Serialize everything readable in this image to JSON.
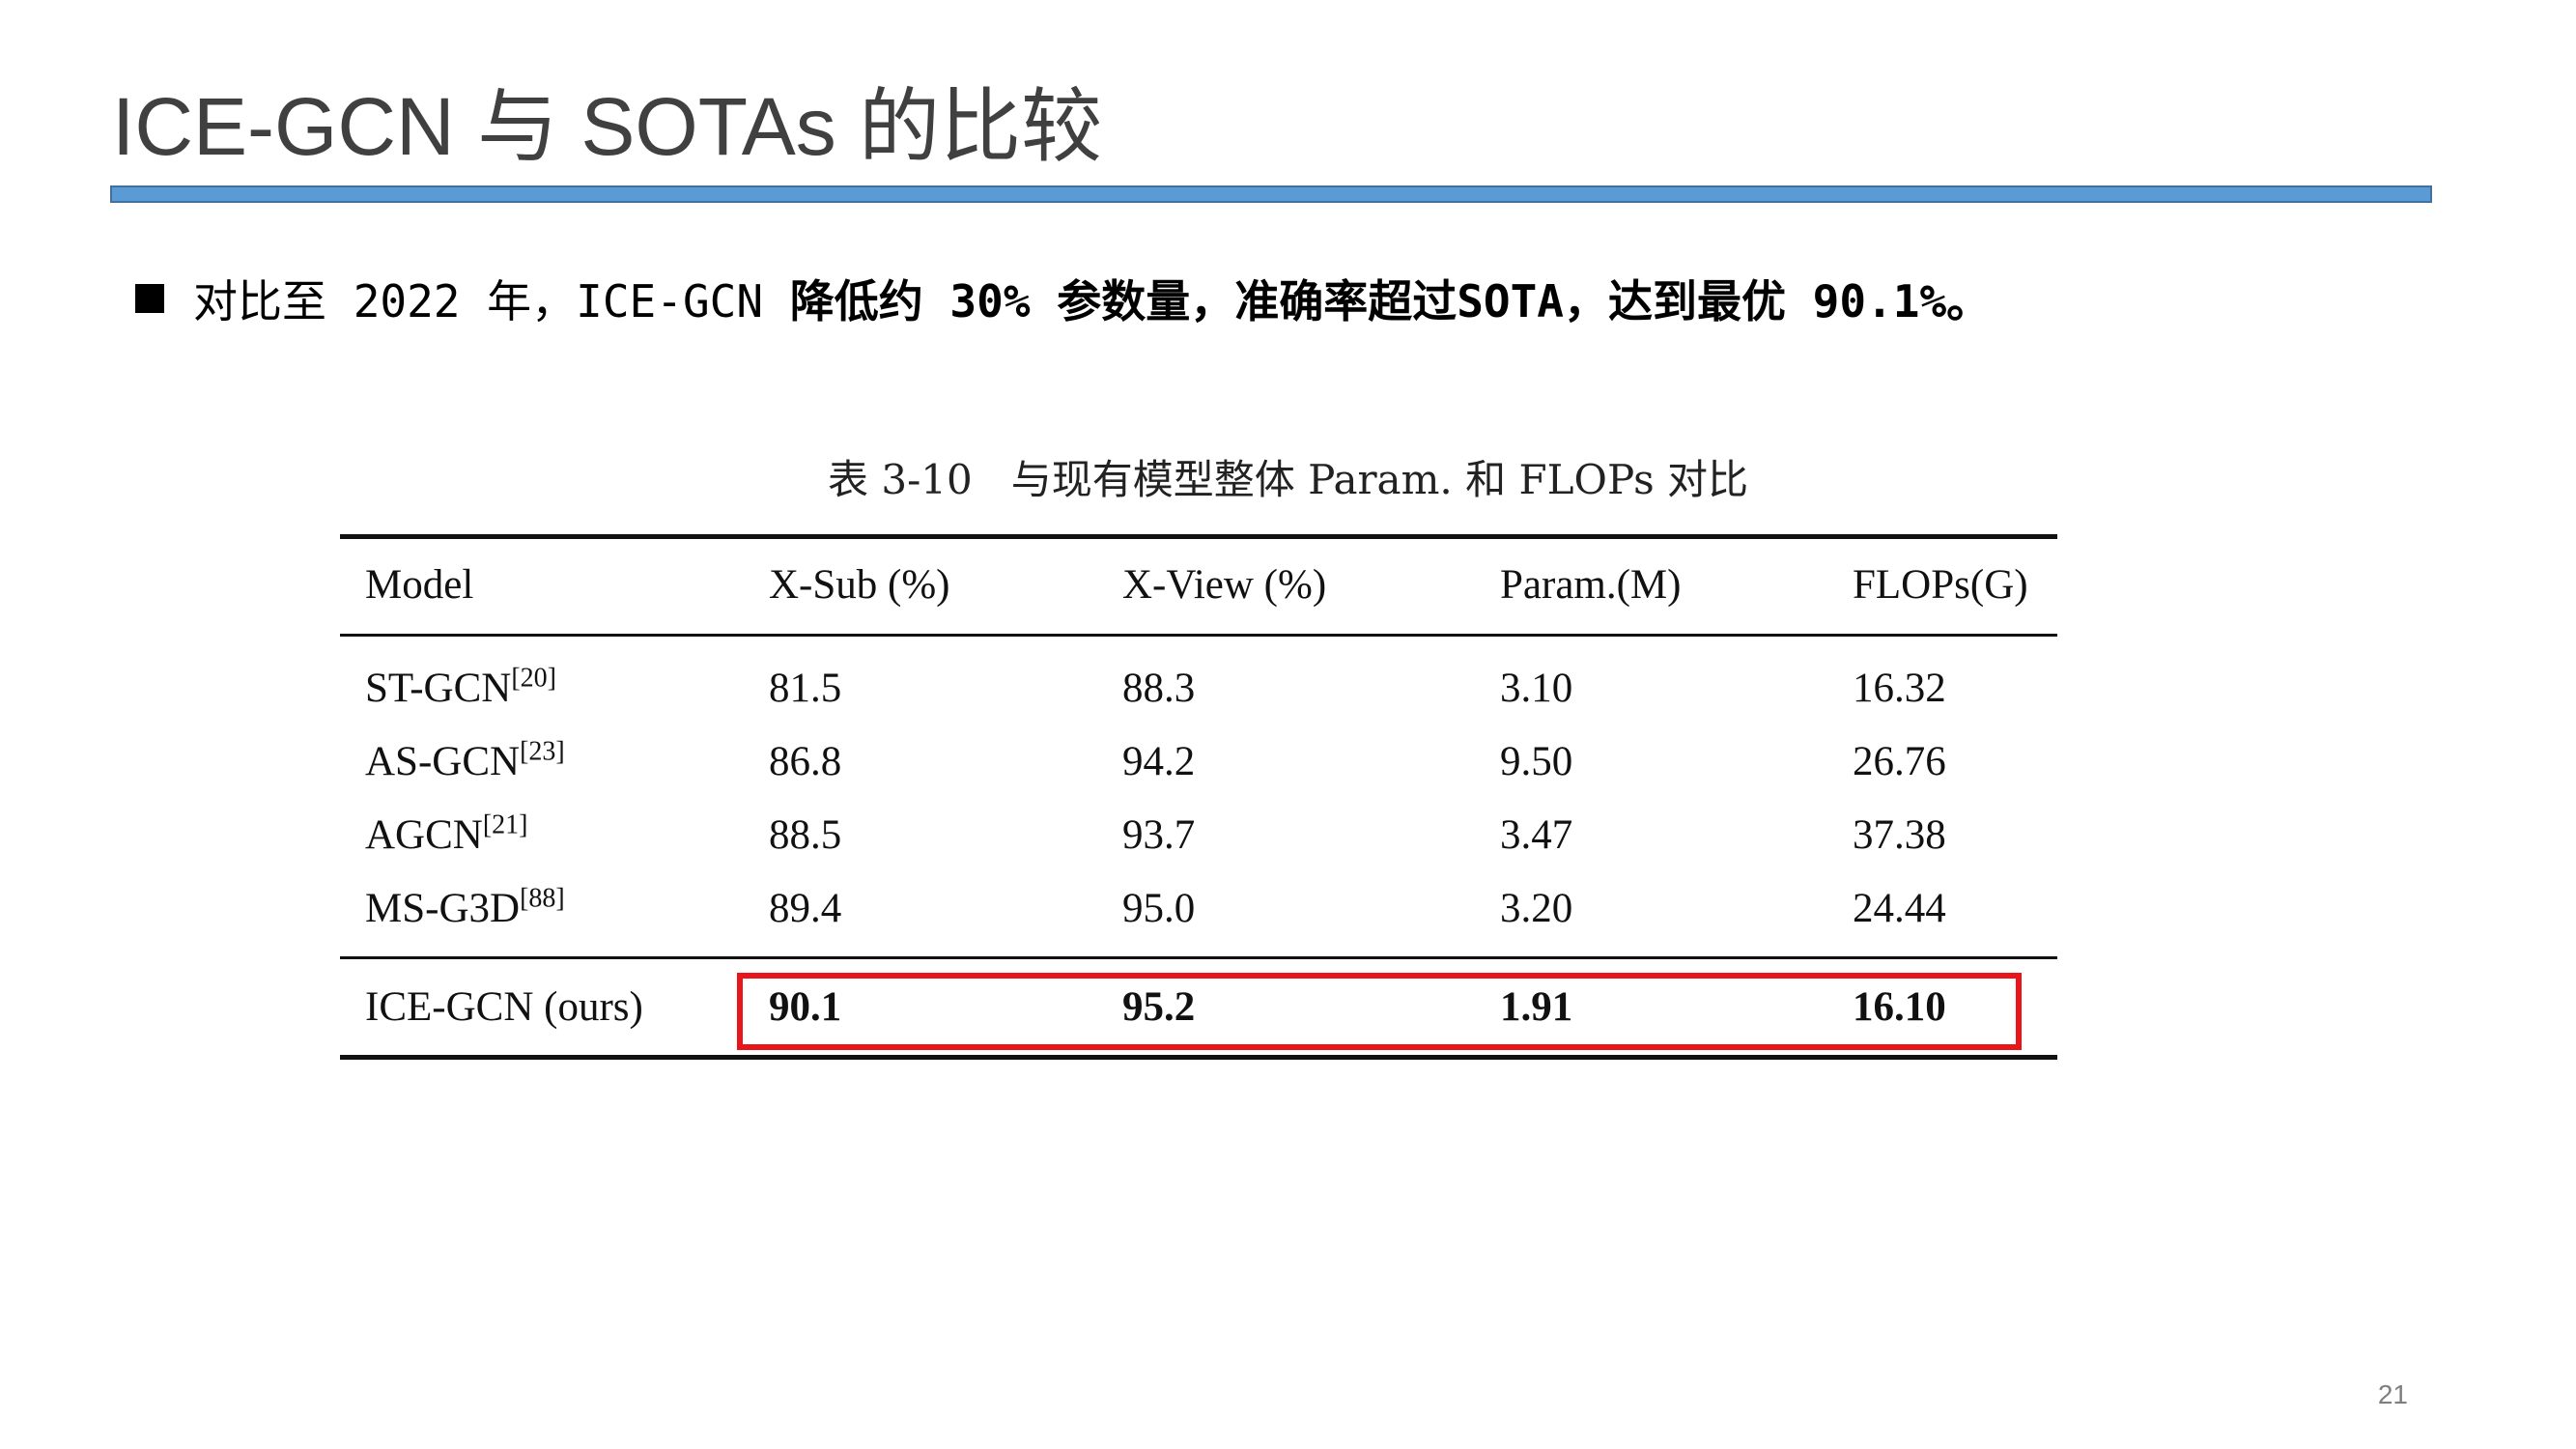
{
  "slide": {
    "title": "ICE-GCN 与 SOTAs 的比较",
    "page_number": "21"
  },
  "bullet": {
    "part1": "对比至 2022 年，ICE-GCN ",
    "part2": "降低约 30% 参数量，准确率超过SOTA，达到最优 90.1%。"
  },
  "table": {
    "caption_number": "表 3-10",
    "caption_text": "与现有模型整体 Param. 和 FLOPs 对比",
    "headers": [
      "Model",
      "X-Sub (%)",
      "X-View (%)",
      "Param.(M)",
      "FLOPs(G)"
    ],
    "rows": [
      {
        "model": "ST-GCN",
        "ref": "[20]",
        "xsub": "81.5",
        "xview": "88.3",
        "param": "3.10",
        "flops": "16.32"
      },
      {
        "model": "AS-GCN",
        "ref": "[23]",
        "xsub": "86.8",
        "xview": "94.2",
        "param": "9.50",
        "flops": "26.76"
      },
      {
        "model": "AGCN",
        "ref": "[21]",
        "xsub": "88.5",
        "xview": "93.7",
        "param": "3.47",
        "flops": "37.38"
      },
      {
        "model": "MS-G3D",
        "ref": "[88]",
        "xsub": "89.4",
        "xview": "95.0",
        "param": "3.20",
        "flops": "24.44"
      }
    ],
    "ours": {
      "model": "ICE-GCN (ours)",
      "xsub": "90.1",
      "xview": "95.2",
      "param": "1.91",
      "flops": "16.10"
    }
  },
  "colors": {
    "title_rule": "#5b9bd5",
    "highlight_box": "#e8161b",
    "title_text": "#404040"
  }
}
